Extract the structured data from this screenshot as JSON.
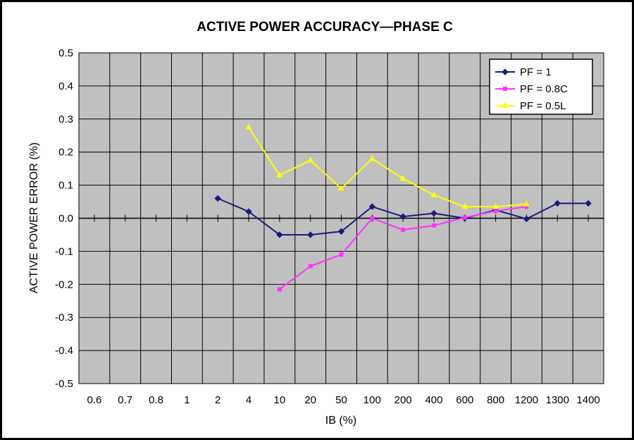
{
  "chart_data": {
    "type": "line",
    "title": "ACTIVE POWER ACCURACY—PHASE C",
    "xlabel": "IB (%)",
    "ylabel": "ACTIVE POWER ERROR (%)",
    "categories": [
      "0.6",
      "0.7",
      "0.8",
      "1",
      "2",
      "4",
      "10",
      "20",
      "50",
      "100",
      "200",
      "400",
      "600",
      "800",
      "1200",
      "1300",
      "1400"
    ],
    "ylim": [
      -0.5,
      0.5
    ],
    "yticks": [
      "0.5",
      "0.4",
      "0.3",
      "0.2",
      "0.1",
      "0.0",
      "-0.1",
      "-0.2",
      "-0.3",
      "-0.4",
      "-0.5"
    ],
    "ytick_values": [
      0.5,
      0.4,
      0.3,
      0.2,
      0.1,
      0.0,
      -0.1,
      -0.2,
      -0.3,
      -0.4,
      -0.5
    ],
    "grid": true,
    "legend_position": "top-right",
    "series": [
      {
        "name": "PF = 1",
        "color": "#1a1a80",
        "marker": "diamond",
        "values": [
          null,
          null,
          null,
          null,
          0.06,
          0.02,
          -0.05,
          -0.05,
          -0.04,
          0.035,
          0.005,
          0.015,
          0.0,
          0.025,
          -0.002,
          0.045,
          0.045
        ]
      },
      {
        "name": "PF = 0.8C",
        "color": "#ff33ff",
        "marker": "square",
        "values": [
          null,
          null,
          null,
          null,
          null,
          null,
          -0.215,
          -0.145,
          -0.11,
          0.0,
          -0.035,
          -0.022,
          0.002,
          0.022,
          0.035,
          null,
          null
        ]
      },
      {
        "name": "PF = 0.5L",
        "color": "#ffff00",
        "marker": "triangle",
        "values": [
          null,
          null,
          null,
          null,
          null,
          0.275,
          0.13,
          0.175,
          0.09,
          0.18,
          0.12,
          0.07,
          0.035,
          0.035,
          0.042,
          null,
          null
        ]
      }
    ]
  }
}
